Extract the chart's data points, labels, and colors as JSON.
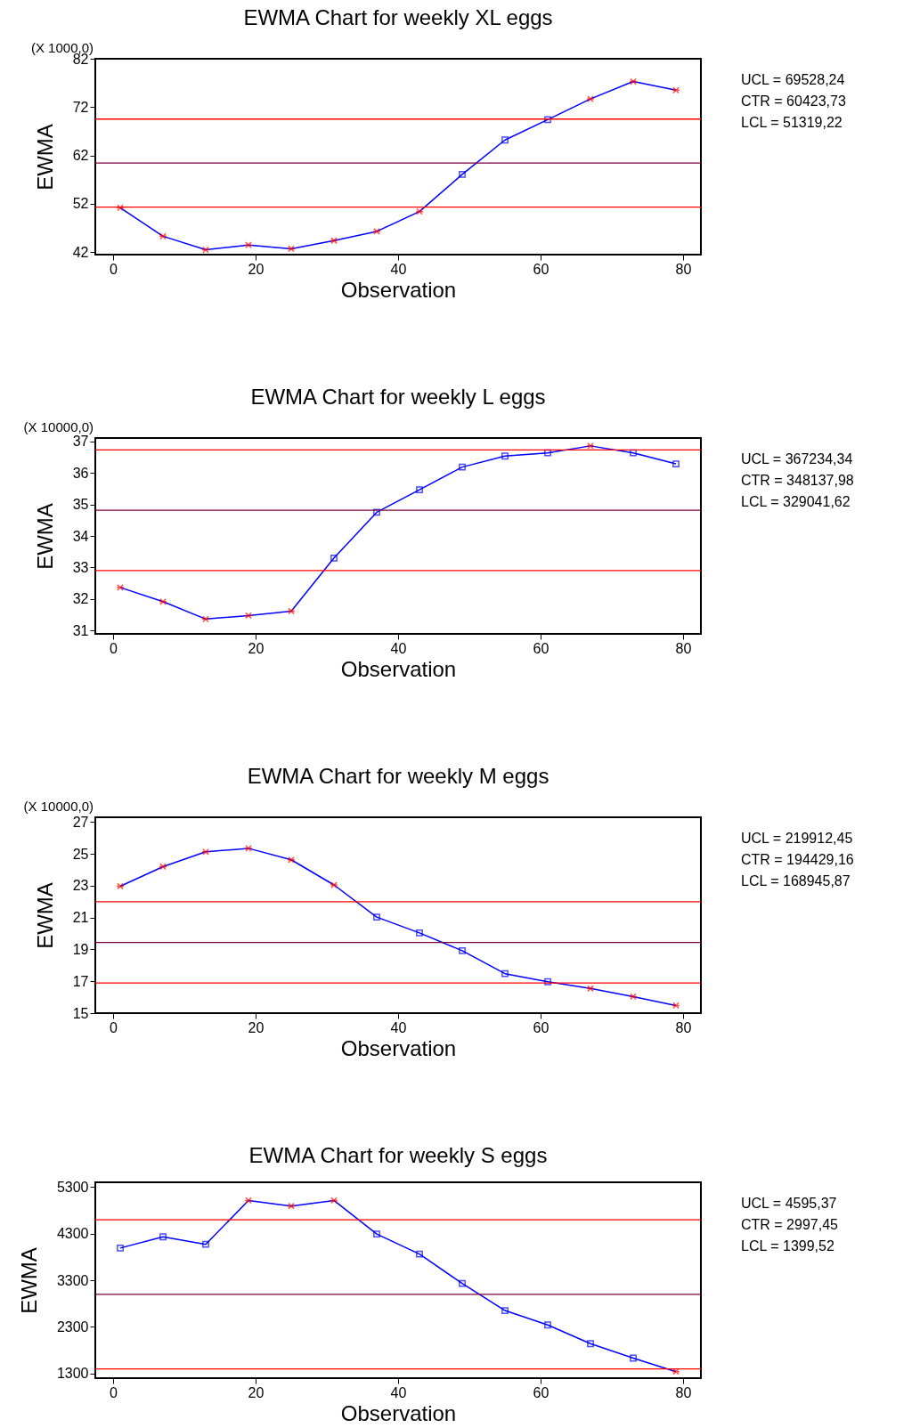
{
  "chart_data": [
    {
      "type": "line",
      "title": "EWMA Chart for weekly XL eggs",
      "xlabel": "Observation",
      "ylabel": "EWMA",
      "xlim": [
        -2.5,
        82.5
      ],
      "xticks": [
        0,
        20,
        40,
        60,
        80
      ],
      "ylim": [
        41.5,
        82
      ],
      "yticks": [
        42,
        52,
        62,
        72,
        82
      ],
      "annotations": [
        "UCL = 69528,24",
        "CTR = 60423,73",
        "LCL = 51319,22",
        "(X 1000,0)"
      ],
      "series": [
        {
          "type": "line",
          "color": "#0000ff",
          "marker": "none",
          "x": [
            1,
            7,
            13,
            19,
            25,
            31,
            37,
            43,
            49,
            55,
            61,
            67,
            73,
            79
          ],
          "values": [
            51.2,
            45.3,
            42.5,
            43.5,
            42.7,
            44.4,
            46.3,
            50.4,
            58.1,
            65.2,
            69.4,
            73.7,
            77.3,
            75.5
          ]
        },
        {
          "type": "scatter",
          "color": "#ff0000",
          "marker": "cross",
          "x": [
            1,
            7,
            13,
            19,
            25,
            31,
            37,
            43,
            67,
            73,
            79
          ],
          "values": [
            51.2,
            45.3,
            42.5,
            43.5,
            42.7,
            44.4,
            46.3,
            50.4,
            73.7,
            77.3,
            75.5
          ]
        },
        {
          "type": "scatter",
          "color": "#0000ff",
          "marker": "square",
          "x": [
            49,
            55,
            61
          ],
          "values": [
            58.1,
            65.2,
            69.4
          ]
        }
      ],
      "ref_lines": [
        {
          "axis": "y",
          "value": 69.52824,
          "color": "#ff0000"
        },
        {
          "axis": "y",
          "value": 60.42373,
          "color": "#800040"
        },
        {
          "axis": "y",
          "value": 51.31922,
          "color": "#ff0000"
        }
      ]
    },
    {
      "type": "line",
      "title": "EWMA Chart for weekly L eggs",
      "xlabel": "Observation",
      "ylabel": "EWMA",
      "xlim": [
        -2.5,
        82.5
      ],
      "xticks": [
        0,
        20,
        40,
        60,
        80
      ],
      "ylim": [
        30.9,
        37.1
      ],
      "yticks": [
        31,
        32,
        33,
        34,
        35,
        36,
        37
      ],
      "annotations": [
        "UCL = 367234,34",
        "CTR = 348137,98",
        "LCL = 329041,62",
        "(X 10000,0)"
      ],
      "series": [
        {
          "type": "line",
          "color": "#0000ff",
          "marker": "none",
          "x": [
            1,
            7,
            13,
            19,
            25,
            31,
            37,
            43,
            49,
            55,
            61,
            67,
            73,
            79
          ],
          "values": [
            32.37,
            31.92,
            31.37,
            31.48,
            31.62,
            33.3,
            34.75,
            35.46,
            36.18,
            36.53,
            36.63,
            36.85,
            36.63,
            36.28
          ]
        },
        {
          "type": "scatter",
          "color": "#ff0000",
          "marker": "cross",
          "x": [
            1,
            7,
            13,
            19,
            25,
            67
          ],
          "values": [
            32.37,
            31.92,
            31.37,
            31.48,
            31.62,
            36.85
          ]
        },
        {
          "type": "scatter",
          "color": "#0000ff",
          "marker": "square",
          "x": [
            31,
            37,
            43,
            49,
            55,
            61,
            73,
            79
          ],
          "values": [
            33.3,
            34.75,
            35.46,
            36.18,
            36.53,
            36.63,
            36.63,
            36.28
          ]
        }
      ],
      "ref_lines": [
        {
          "axis": "y",
          "value": 36.723434,
          "color": "#ff0000"
        },
        {
          "axis": "y",
          "value": 34.813798,
          "color": "#800040"
        },
        {
          "axis": "y",
          "value": 32.904162,
          "color": "#ff0000"
        }
      ]
    },
    {
      "type": "line",
      "title": "EWMA Chart for weekly M eggs",
      "xlabel": "Observation",
      "ylabel": "EWMA",
      "xlim": [
        -2.5,
        82.5
      ],
      "xticks": [
        0,
        20,
        40,
        60,
        80
      ],
      "ylim": [
        15,
        27.3
      ],
      "yticks": [
        15,
        17,
        19,
        21,
        23,
        25,
        27
      ],
      "annotations": [
        "UCL = 219912,45",
        "CTR = 194429,16",
        "LCL = 168945,87",
        "(X 10000,0)"
      ],
      "series": [
        {
          "type": "line",
          "color": "#0000ff",
          "marker": "none",
          "x": [
            1,
            7,
            13,
            19,
            25,
            31,
            37,
            43,
            49,
            55,
            61,
            67,
            73,
            79
          ],
          "values": [
            22.97,
            24.2,
            25.13,
            25.35,
            24.63,
            23.05,
            21.03,
            20.04,
            18.92,
            17.48,
            16.97,
            16.55,
            16.04,
            15.48
          ]
        },
        {
          "type": "scatter",
          "color": "#ff0000",
          "marker": "cross",
          "x": [
            1,
            7,
            13,
            19,
            25,
            31,
            67,
            73,
            79
          ],
          "values": [
            22.97,
            24.2,
            25.13,
            25.35,
            24.63,
            23.05,
            16.55,
            16.04,
            15.48
          ]
        },
        {
          "type": "scatter",
          "color": "#0000ff",
          "marker": "square",
          "x": [
            37,
            43,
            49,
            55,
            61
          ],
          "values": [
            21.03,
            20.04,
            18.92,
            17.48,
            16.97
          ]
        }
      ],
      "ref_lines": [
        {
          "axis": "y",
          "value": 21.991245,
          "color": "#ff0000"
        },
        {
          "axis": "y",
          "value": 19.442916,
          "color": "#800040"
        },
        {
          "axis": "y",
          "value": 16.894587,
          "color": "#ff0000"
        }
      ]
    },
    {
      "type": "line",
      "title": "EWMA Chart for weekly S eggs",
      "xlabel": "Observation",
      "ylabel": "EWMA",
      "xlim": [
        -2.5,
        82.5
      ],
      "xticks": [
        0,
        20,
        40,
        60,
        80
      ],
      "ylim": [
        1200,
        5400
      ],
      "yticks": [
        1300,
        2300,
        3300,
        4300,
        5300
      ],
      "annotations": [
        "UCL = 4595,37",
        "CTR = 2997,45",
        "LCL = 1399,52"
      ],
      "series": [
        {
          "type": "line",
          "color": "#0000ff",
          "marker": "none",
          "x": [
            1,
            7,
            13,
            19,
            25,
            31,
            37,
            43,
            49,
            55,
            61,
            67,
            73,
            79
          ],
          "values": [
            3990,
            4230,
            4070,
            5010,
            4890,
            5010,
            4290,
            3860,
            3230,
            2650,
            2340,
            1940,
            1630,
            1340
          ]
        },
        {
          "type": "scatter",
          "color": "#ff0000",
          "marker": "cross",
          "x": [
            19,
            25,
            31,
            79
          ],
          "values": [
            5010,
            4890,
            5010,
            1340
          ]
        },
        {
          "type": "scatter",
          "color": "#0000ff",
          "marker": "square",
          "x": [
            1,
            7,
            13,
            37,
            43,
            49,
            55,
            61,
            67,
            73
          ],
          "values": [
            3990,
            4230,
            4070,
            4290,
            3860,
            3230,
            2650,
            2340,
            1940,
            1630
          ]
        }
      ],
      "ref_lines": [
        {
          "axis": "y",
          "value": 4595.37,
          "color": "#ff0000"
        },
        {
          "axis": "y",
          "value": 2997.45,
          "color": "#800040"
        },
        {
          "axis": "y",
          "value": 1399.52,
          "color": "#ff0000"
        }
      ]
    }
  ]
}
